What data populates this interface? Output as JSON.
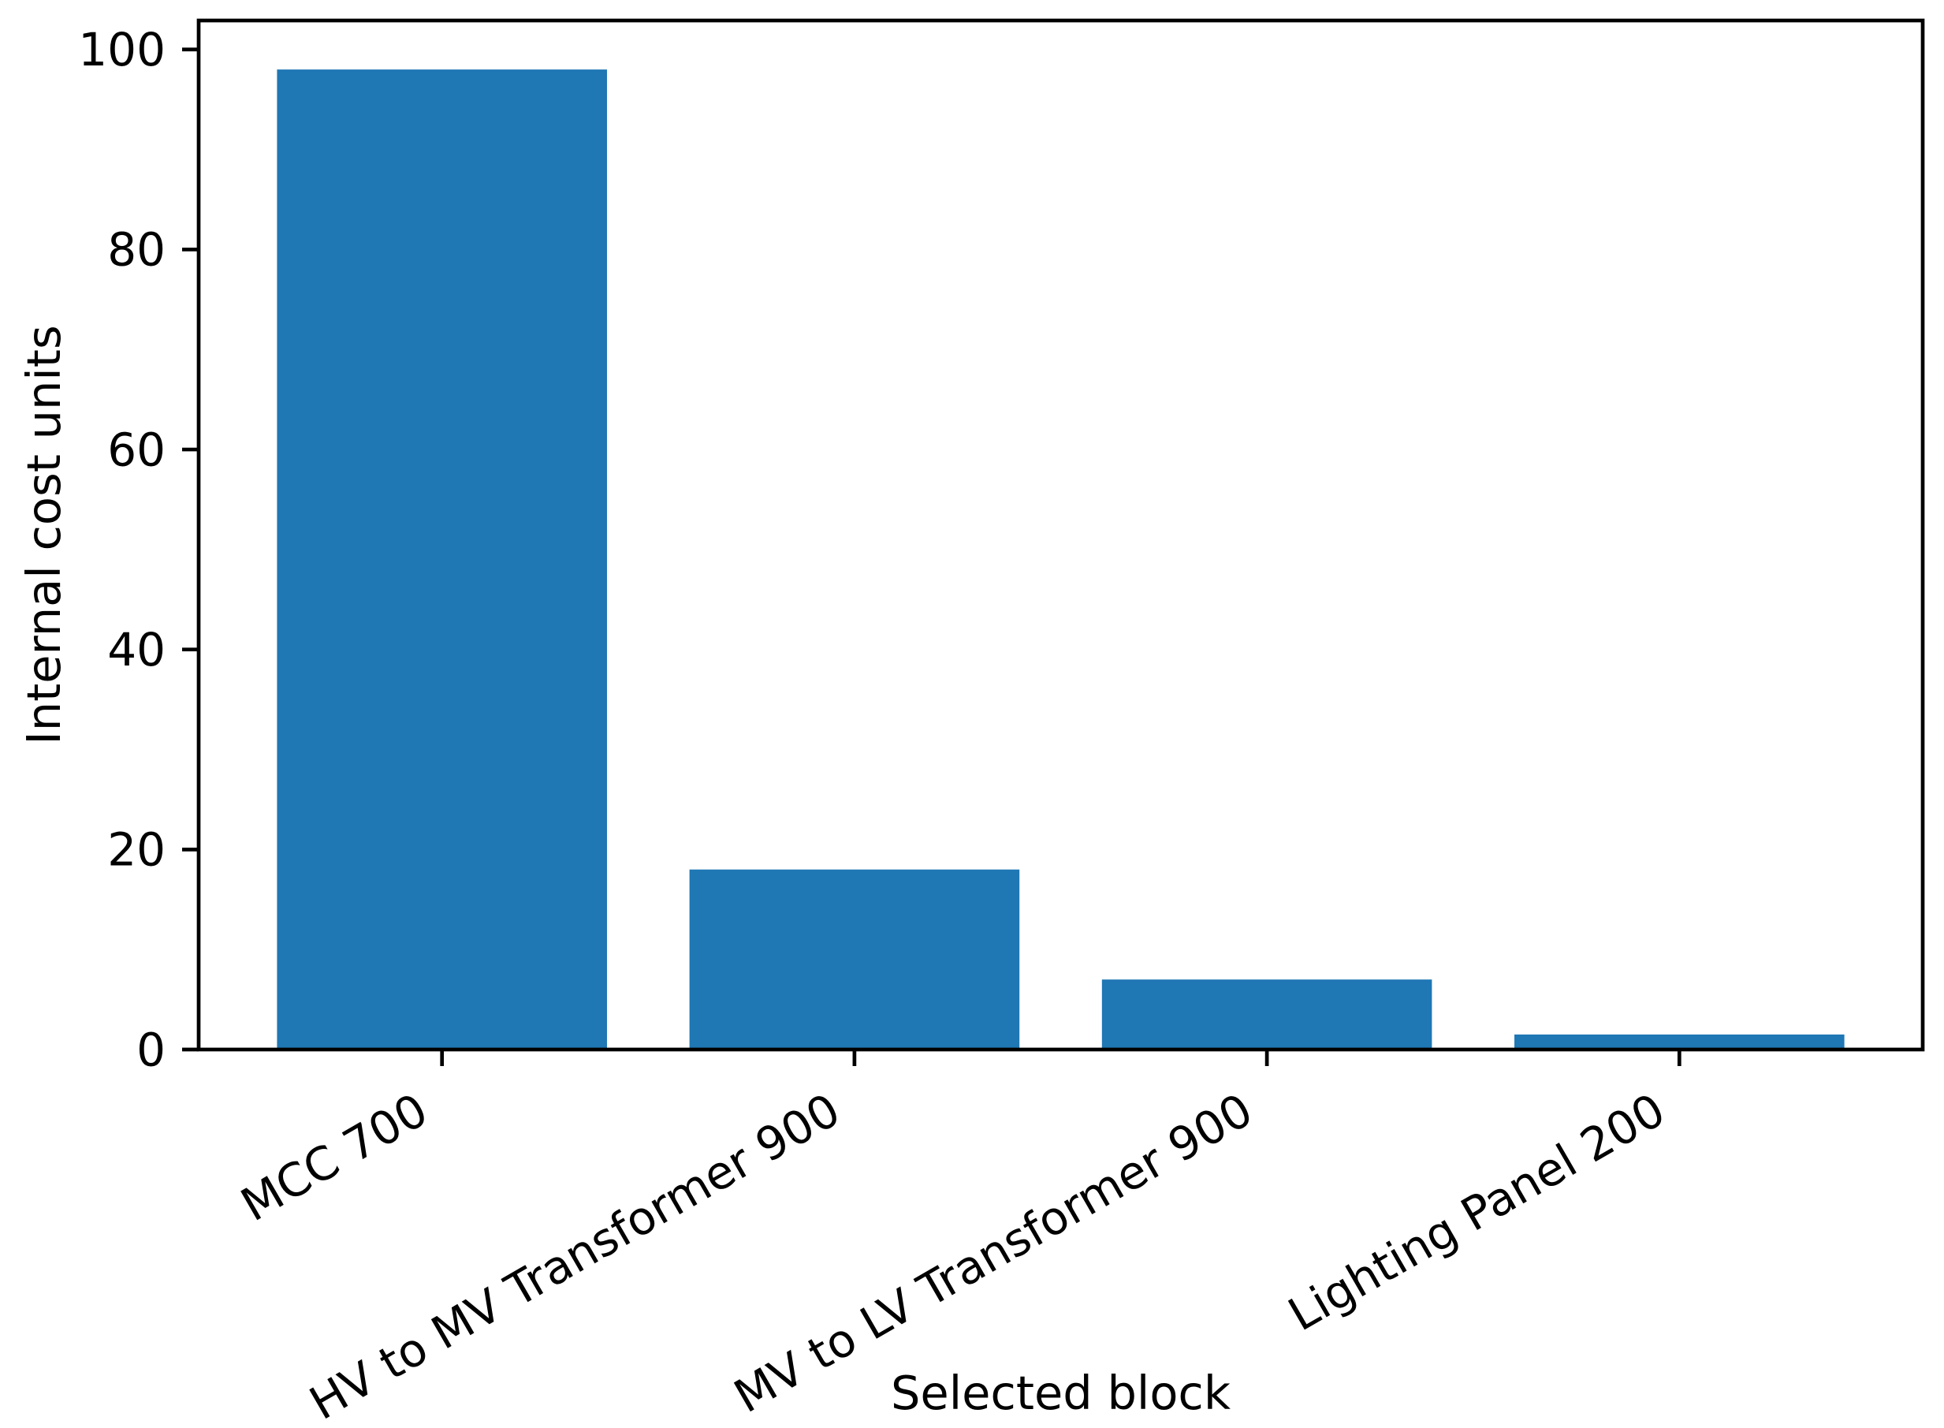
{
  "chart_data": {
    "type": "bar",
    "title": "",
    "xlabel": "Selected block",
    "ylabel": "Internal cost units",
    "categories": [
      "MCC 700",
      "HV to MV Transformer 900",
      "MV to LV Transformer 900",
      "Lighting Panel 200"
    ],
    "values": [
      98,
      18,
      7,
      1.5
    ],
    "yticks": [
      0,
      20,
      40,
      60,
      80,
      100
    ],
    "ytick_labels": [
      "0",
      "20",
      "40",
      "60",
      "80",
      "100"
    ],
    "ylim": [
      0,
      102.9
    ],
    "xtick_rotation_deg": 30,
    "bar_color": "#1f77b4",
    "axis_color": "#000000",
    "text_color": "#000000",
    "background_color": "#ffffff",
    "grid": false,
    "legend": null
  }
}
